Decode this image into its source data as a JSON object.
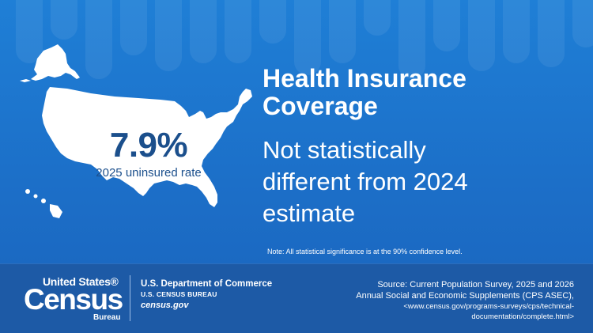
{
  "stat": {
    "value": "7.9%",
    "label": "2025 uninsured rate"
  },
  "headline": {
    "line1": "Health Insurance",
    "line2": "Coverage"
  },
  "body": {
    "line1": "Not statistically",
    "line2": "different from 2024",
    "line3": "estimate"
  },
  "note": "Note: All statistical significance is at the 90% confidence level.",
  "logo": {
    "united_states": "United States®",
    "census": "Census",
    "bureau": "Bureau"
  },
  "department": {
    "line1": "U.S. Department of Commerce",
    "line2": "U.S. CENSUS BUREAU",
    "line3": "census.gov"
  },
  "source": {
    "line1": "Source: Current Population Survey, 2025 and 2026",
    "line2": "Annual Social and Economic Supplements (CPS ASEC),",
    "line3": "<www.census.gov/programs-surveys/cps/technical-",
    "line4": "documentation/complete.html>"
  },
  "colors": {
    "background": "#1f7fd6",
    "footer": "#1d5aa6",
    "stat_text": "#1b4f8c",
    "map_fill": "#ffffff"
  },
  "icons": {
    "map": "united-states-map-icon"
  }
}
